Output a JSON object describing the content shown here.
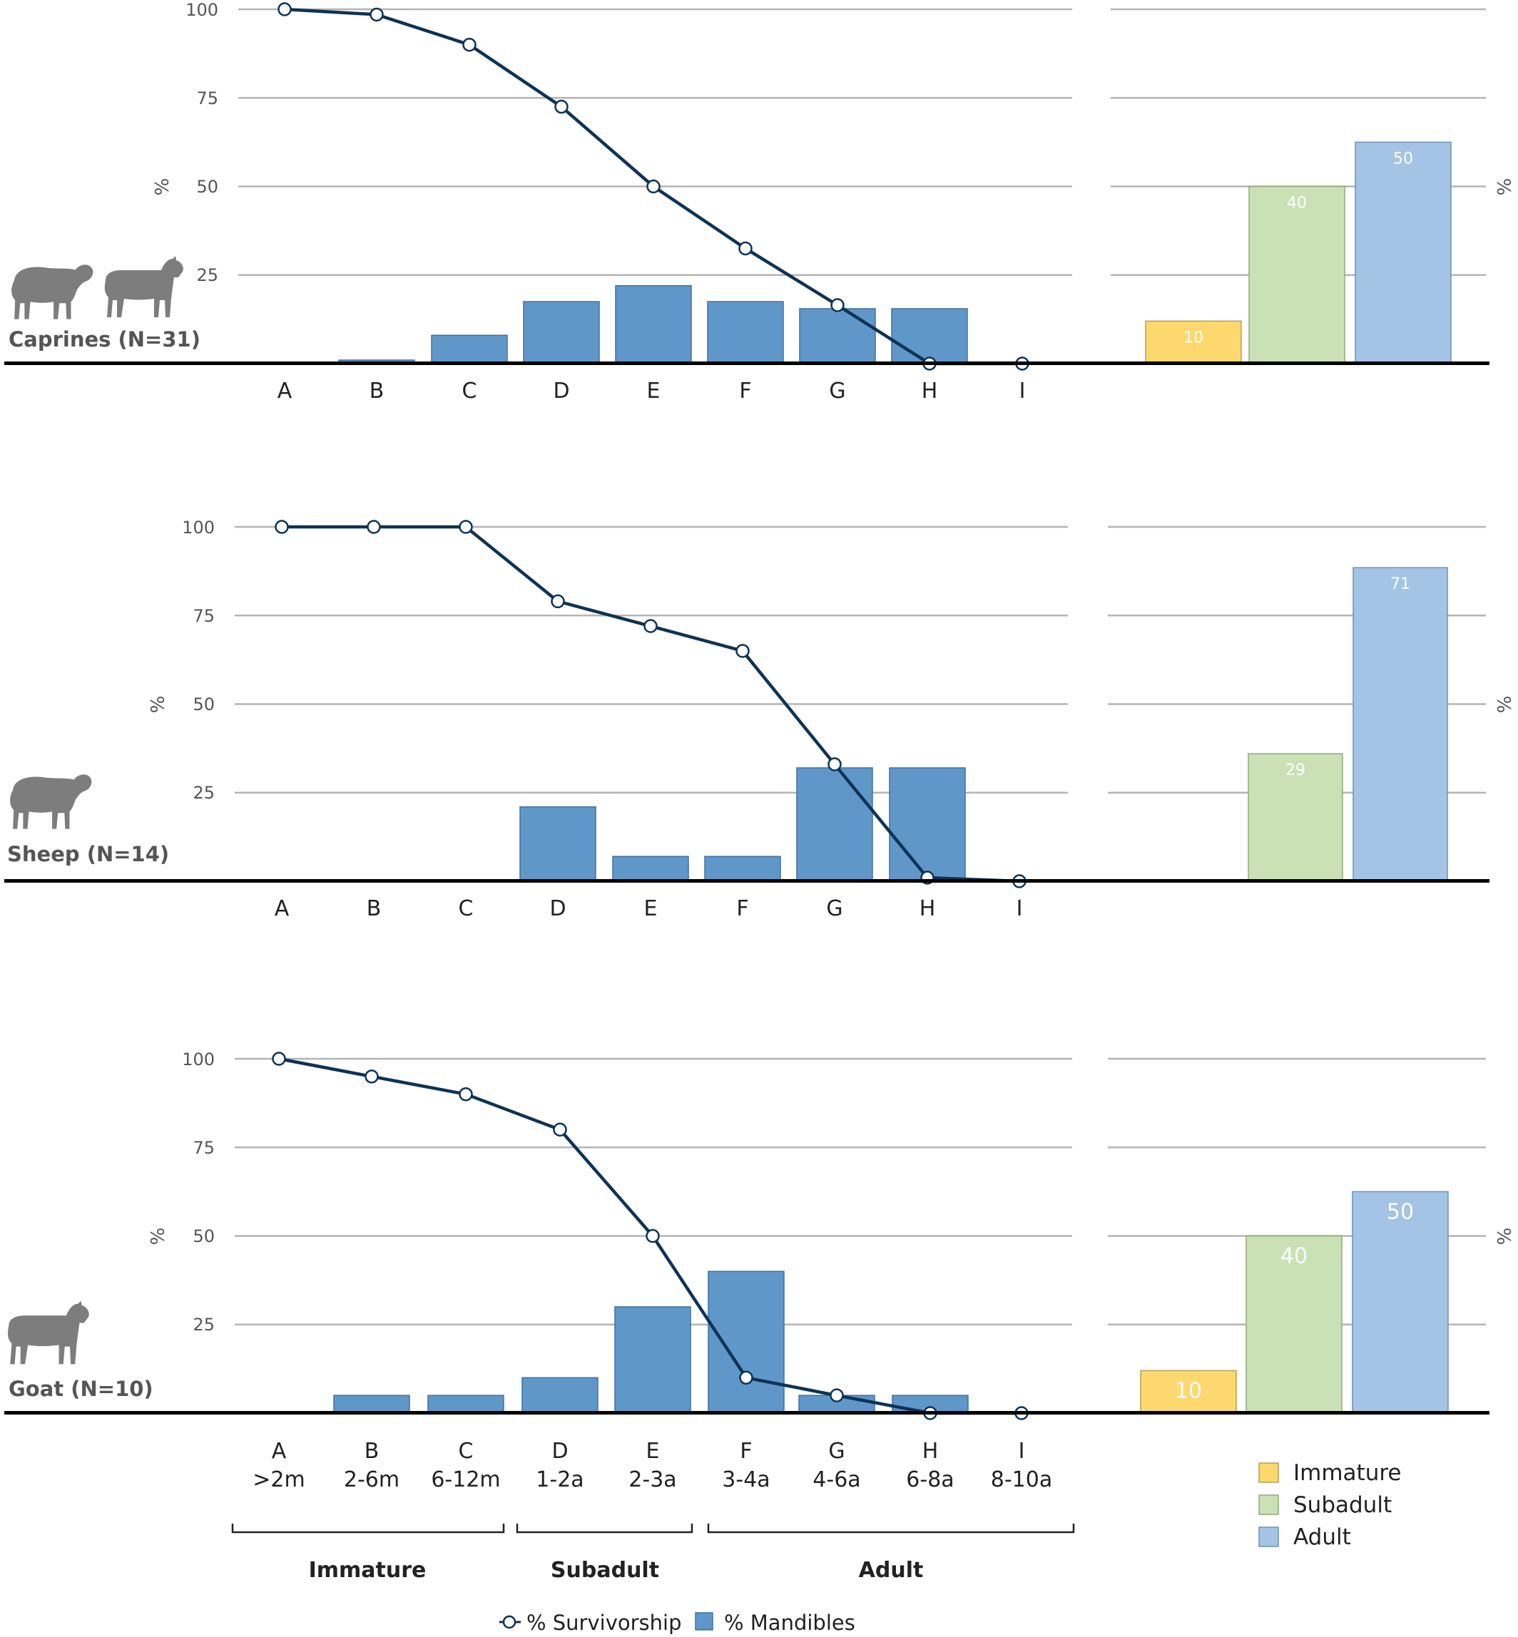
{
  "colors": {
    "bar": "#6097c9",
    "bar_stroke": "#40719f",
    "line": "#0d3355",
    "grid": "#b4b4b4",
    "axis": "#000000",
    "text": "#222222",
    "silhouette": "#7d7d7d",
    "immature": "#fcd86e",
    "subadult": "#c9e1b4",
    "adult": "#a4c4e6",
    "summary_label": "#ffffff"
  },
  "y_ticks": [
    "100",
    "75",
    "50",
    "25"
  ],
  "y_unit": "%",
  "x_codes": [
    "A",
    "B",
    "C",
    "D",
    "E",
    "F",
    "G",
    "H",
    "I"
  ],
  "x_ages": [
    ">2m",
    "2-6m",
    "6-12m",
    "1-2a",
    "2-3a",
    "3-4a",
    "4-6a",
    "6-8a",
    "8-10a"
  ],
  "age_groups": [
    "Immature",
    "Subadult",
    "Adult"
  ],
  "legend": {
    "survivorship": "% Survivorship",
    "mandibles": "% Mandibles",
    "summary": [
      "Immature",
      "Subadult",
      "Adult"
    ]
  },
  "chart_data": [
    {
      "type": "bar",
      "label": "Caprines (N=31)",
      "animal_icons": [
        "sheep-icon",
        "goat-icon"
      ],
      "categories": [
        "A",
        "B",
        "C",
        "D",
        "E",
        "F",
        "G",
        "H",
        "I"
      ],
      "ylim": [
        0,
        100
      ],
      "ylabel": "%",
      "series": [
        {
          "name": "% Mandibles",
          "type": "bar",
          "values": [
            0,
            1,
            8,
            17.5,
            22,
            17.5,
            15.5,
            15.5,
            0
          ]
        },
        {
          "name": "% Survivorship",
          "type": "line",
          "values": [
            100,
            98.5,
            90,
            72.5,
            50,
            32.5,
            16.5,
            0,
            0
          ]
        }
      ],
      "summary": {
        "categories": [
          "Immature",
          "Subadult",
          "Adult"
        ],
        "values": [
          10,
          40,
          50
        ],
        "heights": [
          12,
          50,
          62.5
        ]
      }
    },
    {
      "type": "bar",
      "label": "Sheep (N=14)",
      "animal_icons": [
        "sheep-icon"
      ],
      "categories": [
        "A",
        "B",
        "C",
        "D",
        "E",
        "F",
        "G",
        "H",
        "I"
      ],
      "ylim": [
        0,
        100
      ],
      "ylabel": "%",
      "series": [
        {
          "name": "% Mandibles",
          "type": "bar",
          "values": [
            0,
            0,
            0,
            21,
            7,
            7,
            32,
            32,
            0
          ]
        },
        {
          "name": "% Survivorship",
          "type": "line",
          "values": [
            100,
            100,
            100,
            79,
            72,
            65,
            33,
            1,
            0
          ]
        }
      ],
      "summary": {
        "categories": [
          "Immature",
          "Subadult",
          "Adult"
        ],
        "values": [
          null,
          29,
          71
        ],
        "heights": [
          0,
          36,
          88.5
        ]
      }
    },
    {
      "type": "bar",
      "label": "Goat (N=10)",
      "animal_icons": [
        "goat-icon"
      ],
      "categories": [
        "A",
        "B",
        "C",
        "D",
        "E",
        "F",
        "G",
        "H",
        "I"
      ],
      "ylim": [
        0,
        100
      ],
      "ylabel": "%",
      "series": [
        {
          "name": "% Mandibles",
          "type": "bar",
          "values": [
            0,
            5,
            5,
            10,
            30,
            40,
            5,
            5,
            0
          ]
        },
        {
          "name": "% Survivorship",
          "type": "line",
          "values": [
            100,
            95,
            90,
            80,
            50,
            10,
            5,
            0,
            0
          ]
        }
      ],
      "summary": {
        "categories": [
          "Immature",
          "Subadult",
          "Adult"
        ],
        "values": [
          10,
          40,
          50
        ],
        "heights": [
          12,
          50,
          62.5
        ]
      }
    }
  ]
}
